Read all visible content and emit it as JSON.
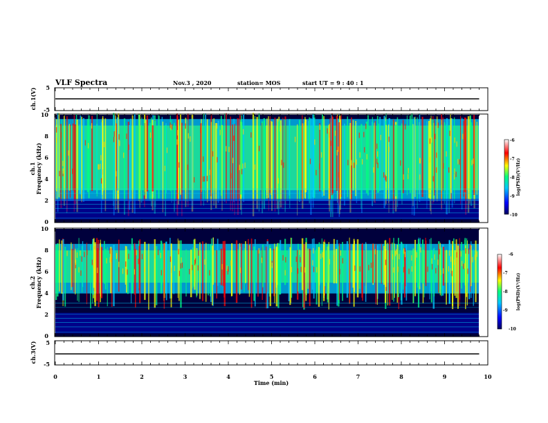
{
  "header": {
    "title": "VLF Spectra",
    "date": "Nov.3  , 2020",
    "station": "station= MOS",
    "start": "start  UT =   9 : 40 : 1"
  },
  "colors": {
    "colormap": [
      "#000060",
      "#0000ff",
      "#00c8ff",
      "#00ff80",
      "#ffff00",
      "#ff0000",
      "#ffffff"
    ]
  },
  "chart_data": [
    {
      "type": "line",
      "panel": "ch1-waveform",
      "ylabel": "ch.1(V)",
      "ylim": [
        -5,
        5
      ],
      "yticks": [
        "5",
        "-5"
      ],
      "xlim": [
        0,
        10
      ],
      "series": [
        {
          "x": [
            0,
            9.8
          ],
          "y": [
            0,
            0
          ]
        }
      ]
    },
    {
      "type": "heatmap",
      "panel": "ch1-spectrogram",
      "ylabel": "ch.1\nFrequency (kHz)",
      "ylim": [
        0,
        10
      ],
      "yticks": [
        "0",
        "2",
        "4",
        "6",
        "8",
        "10"
      ],
      "xlim": [
        0,
        10
      ],
      "colorbar": {
        "label": "log(PSD)(V²/Hz)",
        "range": [
          -10,
          -6
        ],
        "ticks": [
          "-6",
          "-7",
          "-8",
          "-9",
          "-10"
        ]
      },
      "band_khz": [
        3,
        9
      ]
    },
    {
      "type": "heatmap",
      "panel": "ch2-spectrogram",
      "ylabel": "ch.2\nFrequency (kHz)",
      "ylim": [
        0,
        10
      ],
      "yticks": [
        "0",
        "2",
        "4",
        "6",
        "8",
        "10"
      ],
      "xlim": [
        0,
        10
      ],
      "colorbar": {
        "label": "log(PSD)(V²/Hz)",
        "range": [
          -10,
          -6
        ],
        "ticks": [
          "-6",
          "-7",
          "-8",
          "-9",
          "-10"
        ]
      },
      "band_khz": [
        5,
        8
      ]
    },
    {
      "type": "line",
      "panel": "ch3-waveform",
      "ylabel": "ch.3(V)",
      "ylim": [
        -5,
        5
      ],
      "yticks": [
        "5",
        "-5"
      ],
      "xlim": [
        0,
        10
      ],
      "series": [
        {
          "x": [
            0,
            9.8
          ],
          "y": [
            0,
            0
          ]
        }
      ]
    }
  ],
  "xaxis": {
    "label": "Time  (min)",
    "ticks": [
      "0",
      "1",
      "2",
      "3",
      "4",
      "5",
      "6",
      "7",
      "8",
      "9",
      "10"
    ]
  }
}
